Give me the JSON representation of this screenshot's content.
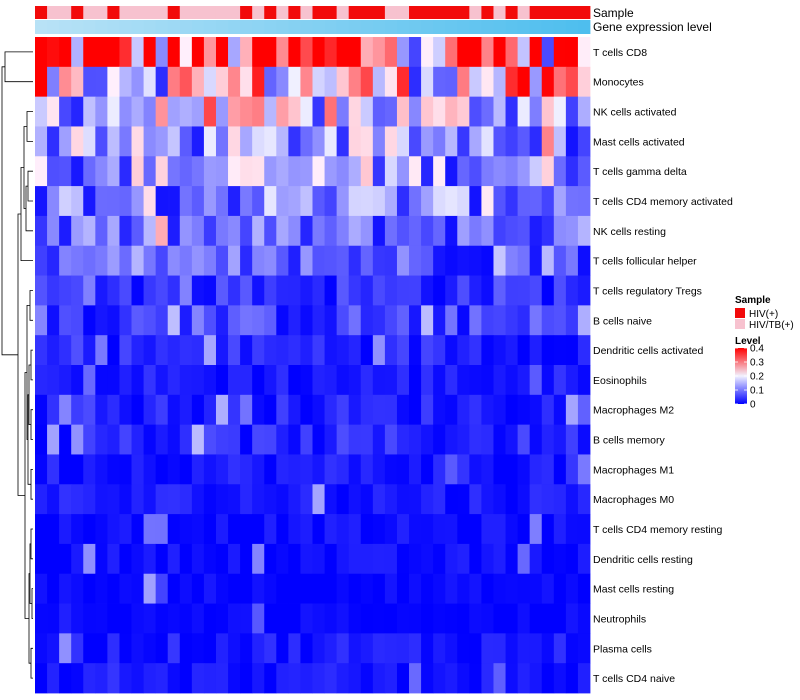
{
  "chart_data": {
    "type": "heatmap",
    "rows": [
      "T cells CD8",
      "Monocytes",
      "NK cells activated",
      "Mast cells activated",
      "T cells gamma delta",
      "T cells CD4 memory activated",
      "NK cells resting",
      "T cells follicular helper",
      "T cells regulatory  Tregs",
      "B cells naive",
      "Dendritic cells activated",
      "Eosinophils",
      "Macrophages M2",
      "B cells memory",
      "Macrophages M1",
      "Macrophages M0",
      "T cells CD4 memory resting",
      "Dendritic cells resting",
      "Mast cells resting",
      "Neutrophils",
      "Plasma cells",
      "T cells CD4 naive"
    ],
    "n_columns": 46,
    "annotation_labels": {
      "sample": "Sample",
      "expression": "Gene expression level"
    },
    "sample_groups": [
      "HIV(+)",
      "HIV/TB(+)"
    ],
    "sample_row": [
      0,
      1,
      1,
      0,
      1,
      1,
      0,
      1,
      1,
      1,
      1,
      0,
      1,
      1,
      1,
      1,
      1,
      0,
      1,
      0,
      1,
      0,
      1,
      0,
      0,
      1,
      0,
      0,
      0,
      1,
      1,
      0,
      0,
      0,
      0,
      0,
      1,
      0,
      1,
      0,
      1,
      0,
      0,
      0,
      0,
      0
    ],
    "expression_row": [
      0.0,
      0.022,
      0.044,
      0.067,
      0.089,
      0.111,
      0.133,
      0.156,
      0.178,
      0.2,
      0.222,
      0.244,
      0.267,
      0.289,
      0.311,
      0.333,
      0.356,
      0.378,
      0.4,
      0.422,
      0.444,
      0.467,
      0.489,
      0.511,
      0.533,
      0.556,
      0.578,
      0.6,
      0.622,
      0.644,
      0.667,
      0.689,
      0.711,
      0.733,
      0.756,
      0.778,
      0.8,
      0.822,
      0.844,
      0.867,
      0.889,
      0.911,
      0.933,
      0.956,
      0.978,
      1.0
    ],
    "row_means": [
      0.32,
      0.22,
      0.16,
      0.12,
      0.13,
      0.11,
      0.08,
      0.07,
      0.04,
      0.05,
      0.03,
      0.02,
      0.025,
      0.03,
      0.02,
      0.02,
      0.01,
      0.01,
      0.005,
      0.004,
      0.02,
      0.015
    ],
    "legend_sample": {
      "title": "Sample",
      "items": [
        {
          "label": "HIV(+)",
          "color": "#f20a0a"
        },
        {
          "label": "HIV/TB(+)",
          "color": "#f7c2cf"
        }
      ]
    },
    "legend_level": {
      "title": "Level",
      "ticks": [
        "0.4",
        "0.3",
        "0.2",
        "0.1",
        "0"
      ],
      "tick_values": [
        0.4,
        0.3,
        0.2,
        0.1,
        0.0
      ],
      "vmin": 0,
      "vmax": 0.4,
      "colors": [
        "#0000ff",
        "#f2f2ff",
        "#ff0000"
      ]
    }
  }
}
